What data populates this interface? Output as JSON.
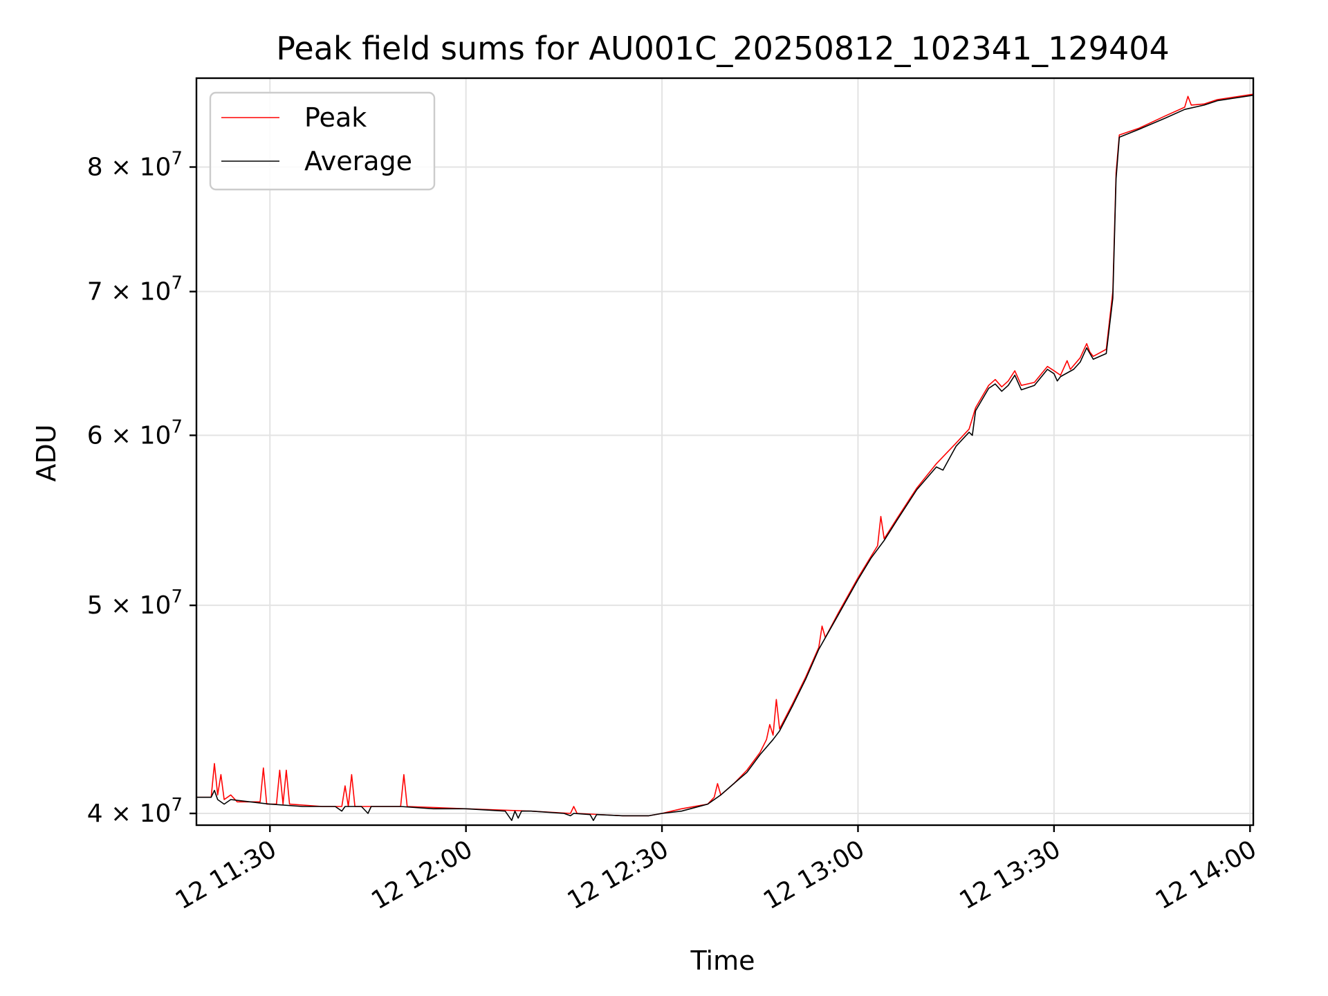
{
  "chart_data": {
    "type": "line",
    "title": "Peak field sums for AU001C_20250812_102341_129404",
    "xlabel": "Time",
    "ylabel": "ADU",
    "x_range": [
      "2025-08-12T11:18:45",
      "2025-08-12T14:00:30"
    ],
    "y_scale": "log",
    "ylim": [
      39500000,
      88000000
    ],
    "grid": true,
    "legend_position": "upper-left",
    "x_ticks": [
      {
        "t": "2025-08-12T11:30:00",
        "label": "12 11:30"
      },
      {
        "t": "2025-08-12T12:00:00",
        "label": "12 12:00"
      },
      {
        "t": "2025-08-12T12:30:00",
        "label": "12 12:30"
      },
      {
        "t": "2025-08-12T13:00:00",
        "label": "12 13:00"
      },
      {
        "t": "2025-08-12T13:30:00",
        "label": "12 13:30"
      },
      {
        "t": "2025-08-12T14:00:00",
        "label": "12 14:00"
      }
    ],
    "y_ticks": [
      {
        "v": 40000000,
        "label": "4 × 10⁷",
        "mant": "4",
        "exp": "7"
      },
      {
        "v": 50000000,
        "label": "5 × 10⁷",
        "mant": "5",
        "exp": "7"
      },
      {
        "v": 60000000,
        "label": "6 × 10⁷",
        "mant": "6",
        "exp": "7"
      },
      {
        "v": 70000000,
        "label": "7 × 10⁷",
        "mant": "7",
        "exp": "7"
      },
      {
        "v": 80000000,
        "label": "8 × 10⁷",
        "mant": "8",
        "exp": "7"
      }
    ],
    "series": [
      {
        "name": "Peak",
        "color": "#ff0000",
        "points": [
          [
            "2025-08-12T11:18:45",
            40700000
          ],
          [
            "2025-08-12T11:21:00",
            40700000
          ],
          [
            "2025-08-12T11:21:30",
            42200000
          ],
          [
            "2025-08-12T11:22:00",
            40800000
          ],
          [
            "2025-08-12T11:22:30",
            41700000
          ],
          [
            "2025-08-12T11:23:00",
            40600000
          ],
          [
            "2025-08-12T11:24:00",
            40800000
          ],
          [
            "2025-08-12T11:25:00",
            40500000
          ],
          [
            "2025-08-12T11:27:00",
            40500000
          ],
          [
            "2025-08-12T11:28:30",
            40500000
          ],
          [
            "2025-08-12T11:29:00",
            42000000
          ],
          [
            "2025-08-12T11:29:30",
            40400000
          ],
          [
            "2025-08-12T11:31:00",
            40400000
          ],
          [
            "2025-08-12T11:31:30",
            41900000
          ],
          [
            "2025-08-12T11:32:00",
            40400000
          ],
          [
            "2025-08-12T11:32:30",
            41900000
          ],
          [
            "2025-08-12T11:33:00",
            40400000
          ],
          [
            "2025-08-12T11:38:00",
            40300000
          ],
          [
            "2025-08-12T11:41:00",
            40300000
          ],
          [
            "2025-08-12T11:41:30",
            41200000
          ],
          [
            "2025-08-12T11:42:00",
            40300000
          ],
          [
            "2025-08-12T11:42:30",
            41700000
          ],
          [
            "2025-08-12T11:43:00",
            40300000
          ],
          [
            "2025-08-12T11:49:00",
            40300000
          ],
          [
            "2025-08-12T11:50:00",
            40300000
          ],
          [
            "2025-08-12T11:50:30",
            41700000
          ],
          [
            "2025-08-12T11:51:00",
            40300000
          ],
          [
            "2025-08-12T12:00:00",
            40200000
          ],
          [
            "2025-08-12T12:10:00",
            40100000
          ],
          [
            "2025-08-12T12:16:00",
            40000000
          ],
          [
            "2025-08-12T12:16:30",
            40300000
          ],
          [
            "2025-08-12T12:17:00",
            40000000
          ],
          [
            "2025-08-12T12:24:00",
            39900000
          ],
          [
            "2025-08-12T12:28:00",
            39900000
          ],
          [
            "2025-08-12T12:30:00",
            40000000
          ],
          [
            "2025-08-12T12:33:00",
            40200000
          ],
          [
            "2025-08-12T12:37:00",
            40400000
          ],
          [
            "2025-08-12T12:38:00",
            40700000
          ],
          [
            "2025-08-12T12:38:30",
            41300000
          ],
          [
            "2025-08-12T12:39:00",
            40800000
          ],
          [
            "2025-08-12T12:41:00",
            41300000
          ],
          [
            "2025-08-12T12:43:00",
            41900000
          ],
          [
            "2025-08-12T12:45:00",
            42700000
          ],
          [
            "2025-08-12T12:46:00",
            43300000
          ],
          [
            "2025-08-12T12:46:30",
            44000000
          ],
          [
            "2025-08-12T12:47:00",
            43500000
          ],
          [
            "2025-08-12T12:47:30",
            45200000
          ],
          [
            "2025-08-12T12:48:00",
            43800000
          ],
          [
            "2025-08-12T12:50:00",
            45000000
          ],
          [
            "2025-08-12T12:52:00",
            46300000
          ],
          [
            "2025-08-12T12:54:00",
            47800000
          ],
          [
            "2025-08-12T12:54:30",
            48900000
          ],
          [
            "2025-08-12T12:55:00",
            48300000
          ],
          [
            "2025-08-12T12:57:00",
            49600000
          ],
          [
            "2025-08-12T13:00:00",
            51500000
          ],
          [
            "2025-08-12T13:02:00",
            52700000
          ],
          [
            "2025-08-12T13:03:00",
            53300000
          ],
          [
            "2025-08-12T13:03:30",
            55000000
          ],
          [
            "2025-08-12T13:04:00",
            53700000
          ],
          [
            "2025-08-12T13:06:00",
            54900000
          ],
          [
            "2025-08-12T13:09:00",
            56700000
          ],
          [
            "2025-08-12T13:12:00",
            58200000
          ],
          [
            "2025-08-12T13:15:00",
            59500000
          ],
          [
            "2025-08-12T13:17:00",
            60400000
          ],
          [
            "2025-08-12T13:18:00",
            61800000
          ],
          [
            "2025-08-12T13:20:00",
            63300000
          ],
          [
            "2025-08-12T13:21:00",
            63700000
          ],
          [
            "2025-08-12T13:22:00",
            63200000
          ],
          [
            "2025-08-12T13:23:00",
            63600000
          ],
          [
            "2025-08-12T13:24:00",
            64300000
          ],
          [
            "2025-08-12T13:25:00",
            63300000
          ],
          [
            "2025-08-12T13:27:00",
            63500000
          ],
          [
            "2025-08-12T13:29:00",
            64600000
          ],
          [
            "2025-08-12T13:30:00",
            64300000
          ],
          [
            "2025-08-12T13:31:00",
            64000000
          ],
          [
            "2025-08-12T13:32:00",
            65000000
          ],
          [
            "2025-08-12T13:32:30",
            64400000
          ],
          [
            "2025-08-12T13:34:00",
            65200000
          ],
          [
            "2025-08-12T13:35:00",
            66200000
          ],
          [
            "2025-08-12T13:35:30",
            65600000
          ],
          [
            "2025-08-12T13:36:00",
            65300000
          ],
          [
            "2025-08-12T13:38:00",
            65800000
          ],
          [
            "2025-08-12T13:39:00",
            70000000
          ],
          [
            "2025-08-12T13:39:30",
            79500000
          ],
          [
            "2025-08-12T13:40:00",
            82800000
          ],
          [
            "2025-08-12T13:43:00",
            83400000
          ],
          [
            "2025-08-12T13:47:00",
            84500000
          ],
          [
            "2025-08-12T13:50:00",
            85300000
          ],
          [
            "2025-08-12T13:50:30",
            86300000
          ],
          [
            "2025-08-12T13:51:00",
            85500000
          ],
          [
            "2025-08-12T13:53:00",
            85600000
          ],
          [
            "2025-08-12T13:55:00",
            86000000
          ],
          [
            "2025-08-12T14:00:30",
            86500000
          ]
        ]
      },
      {
        "name": "Average",
        "color": "#000000",
        "points": [
          [
            "2025-08-12T11:18:45",
            40700000
          ],
          [
            "2025-08-12T11:21:00",
            40700000
          ],
          [
            "2025-08-12T11:21:30",
            41000000
          ],
          [
            "2025-08-12T11:22:00",
            40600000
          ],
          [
            "2025-08-12T11:23:00",
            40400000
          ],
          [
            "2025-08-12T11:24:00",
            40600000
          ],
          [
            "2025-08-12T11:27:00",
            40500000
          ],
          [
            "2025-08-12T11:30:00",
            40400000
          ],
          [
            "2025-08-12T11:35:00",
            40300000
          ],
          [
            "2025-08-12T11:40:00",
            40300000
          ],
          [
            "2025-08-12T11:41:00",
            40100000
          ],
          [
            "2025-08-12T11:41:30",
            40300000
          ],
          [
            "2025-08-12T11:44:00",
            40300000
          ],
          [
            "2025-08-12T11:45:00",
            40000000
          ],
          [
            "2025-08-12T11:45:30",
            40300000
          ],
          [
            "2025-08-12T11:50:00",
            40300000
          ],
          [
            "2025-08-12T11:55:00",
            40200000
          ],
          [
            "2025-08-12T12:00:00",
            40200000
          ],
          [
            "2025-08-12T12:06:00",
            40100000
          ],
          [
            "2025-08-12T12:07:00",
            39700000
          ],
          [
            "2025-08-12T12:07:30",
            40100000
          ],
          [
            "2025-08-12T12:08:00",
            39800000
          ],
          [
            "2025-08-12T12:08:30",
            40100000
          ],
          [
            "2025-08-12T12:10:00",
            40100000
          ],
          [
            "2025-08-12T12:15:00",
            40000000
          ],
          [
            "2025-08-12T12:16:00",
            39900000
          ],
          [
            "2025-08-12T12:16:30",
            40000000
          ],
          [
            "2025-08-12T12:19:00",
            39950000
          ],
          [
            "2025-08-12T12:19:30",
            39700000
          ],
          [
            "2025-08-12T12:20:00",
            39950000
          ],
          [
            "2025-08-12T12:24:00",
            39900000
          ],
          [
            "2025-08-12T12:28:00",
            39900000
          ],
          [
            "2025-08-12T12:30:00",
            40000000
          ],
          [
            "2025-08-12T12:33:00",
            40100000
          ],
          [
            "2025-08-12T12:37:00",
            40400000
          ],
          [
            "2025-08-12T12:39:00",
            40800000
          ],
          [
            "2025-08-12T12:41:00",
            41300000
          ],
          [
            "2025-08-12T12:43:00",
            41800000
          ],
          [
            "2025-08-12T12:45:00",
            42600000
          ],
          [
            "2025-08-12T12:47:00",
            43300000
          ],
          [
            "2025-08-12T12:48:00",
            43700000
          ],
          [
            "2025-08-12T12:50:00",
            44900000
          ],
          [
            "2025-08-12T12:52:00",
            46200000
          ],
          [
            "2025-08-12T12:54:00",
            47700000
          ],
          [
            "2025-08-12T12:57:00",
            49500000
          ],
          [
            "2025-08-12T13:00:00",
            51400000
          ],
          [
            "2025-08-12T13:02:00",
            52600000
          ],
          [
            "2025-08-12T13:04:00",
            53600000
          ],
          [
            "2025-08-12T13:06:00",
            54800000
          ],
          [
            "2025-08-12T13:09:00",
            56600000
          ],
          [
            "2025-08-12T13:12:00",
            58000000
          ],
          [
            "2025-08-12T13:13:00",
            57800000
          ],
          [
            "2025-08-12T13:15:00",
            59300000
          ],
          [
            "2025-08-12T13:17:00",
            60200000
          ],
          [
            "2025-08-12T13:17:30",
            60000000
          ],
          [
            "2025-08-12T13:18:00",
            61600000
          ],
          [
            "2025-08-12T13:20:00",
            63100000
          ],
          [
            "2025-08-12T13:21:00",
            63400000
          ],
          [
            "2025-08-12T13:22:00",
            62900000
          ],
          [
            "2025-08-12T13:23:00",
            63300000
          ],
          [
            "2025-08-12T13:24:00",
            64000000
          ],
          [
            "2025-08-12T13:25:00",
            63000000
          ],
          [
            "2025-08-12T13:27:00",
            63300000
          ],
          [
            "2025-08-12T13:29:00",
            64400000
          ],
          [
            "2025-08-12T13:30:00",
            64100000
          ],
          [
            "2025-08-12T13:30:30",
            63600000
          ],
          [
            "2025-08-12T13:31:00",
            63900000
          ],
          [
            "2025-08-12T13:33:00",
            64400000
          ],
          [
            "2025-08-12T13:34:00",
            64900000
          ],
          [
            "2025-08-12T13:35:00",
            65900000
          ],
          [
            "2025-08-12T13:36:00",
            65100000
          ],
          [
            "2025-08-12T13:38:00",
            65500000
          ],
          [
            "2025-08-12T13:39:00",
            69500000
          ],
          [
            "2025-08-12T13:39:30",
            79000000
          ],
          [
            "2025-08-12T13:40:00",
            82600000
          ],
          [
            "2025-08-12T13:43:00",
            83300000
          ],
          [
            "2025-08-12T13:47:00",
            84300000
          ],
          [
            "2025-08-12T13:50:00",
            85100000
          ],
          [
            "2025-08-12T13:53:00",
            85500000
          ],
          [
            "2025-08-12T13:55:00",
            85900000
          ],
          [
            "2025-08-12T14:00:30",
            86400000
          ]
        ]
      }
    ]
  }
}
